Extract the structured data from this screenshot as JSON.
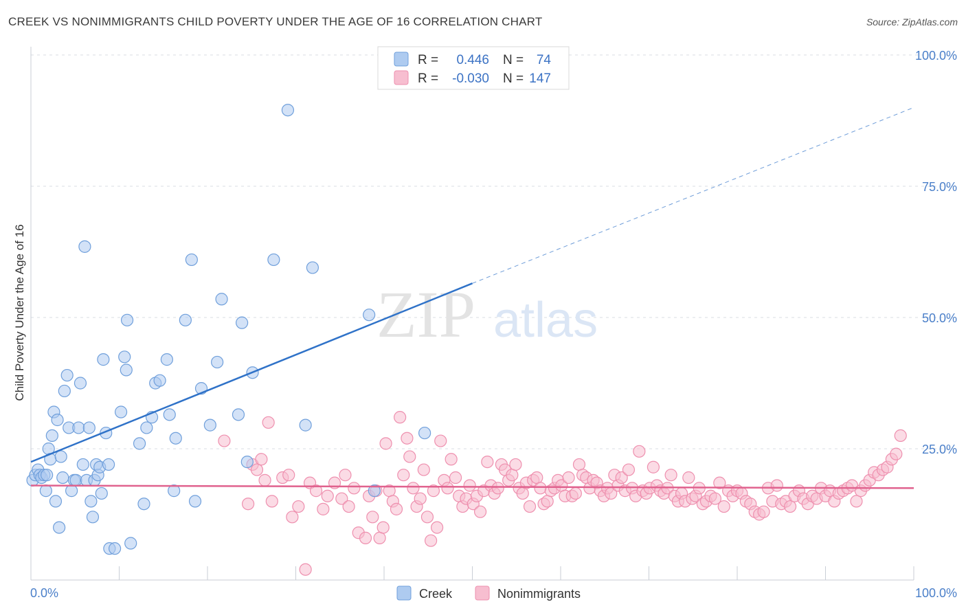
{
  "title": "CREEK VS NONIMMIGRANTS CHILD POVERTY UNDER THE AGE OF 16 CORRELATION CHART",
  "source": "Source: ZipAtlas.com",
  "watermark": {
    "zip": "ZIP",
    "atlas": "atlas"
  },
  "colors": {
    "creek_fill": "#aecbf0",
    "creek_stroke": "#6f9fdb",
    "creek_line": "#2f72c8",
    "nonimm_fill": "#f7bed0",
    "nonimm_stroke": "#ee8fae",
    "nonimm_line": "#e0628e",
    "grid": "#d9dde3",
    "tick_text": "#4a7fc9"
  },
  "legend": {
    "creek": {
      "r_label": "R =",
      "r_value": "0.446",
      "n_label": "N =",
      "n_value": "74"
    },
    "nonimm": {
      "r_label": "R =",
      "r_value": "-0.030",
      "n_label": "N =",
      "n_value": "147"
    }
  },
  "chart_data": {
    "type": "scatter",
    "xlabel": "",
    "ylabel": "Child Poverty Under the Age of 16",
    "xlim": [
      0,
      100
    ],
    "ylim": [
      0,
      100
    ],
    "x_tick_labels": {
      "min": "0.0%",
      "max": "100.0%"
    },
    "y_ticks": [
      {
        "value": 25,
        "label": "25.0%"
      },
      {
        "value": 50,
        "label": "50.0%"
      },
      {
        "value": 75,
        "label": "75.0%"
      },
      {
        "value": 100,
        "label": "100.0%"
      }
    ],
    "grid": true,
    "legend_position": "top-center",
    "series": [
      {
        "name": "Creek",
        "trend": {
          "x0": 0,
          "y0": 22.5,
          "x1": 50,
          "y1": 56.5,
          "dash_to_x": 100,
          "dash_to_y": 90
        },
        "points": [
          [
            0.2,
            19
          ],
          [
            0.5,
            20
          ],
          [
            0.8,
            21
          ],
          [
            1.0,
            20
          ],
          [
            1.2,
            19.5
          ],
          [
            1.5,
            20
          ],
          [
            1.7,
            17
          ],
          [
            1.8,
            20
          ],
          [
            2.0,
            25
          ],
          [
            2.2,
            23
          ],
          [
            2.4,
            27.5
          ],
          [
            2.6,
            32
          ],
          [
            2.8,
            15
          ],
          [
            3.0,
            30.5
          ],
          [
            3.2,
            10
          ],
          [
            3.4,
            23.5
          ],
          [
            3.6,
            19.5
          ],
          [
            3.8,
            36
          ],
          [
            4.1,
            39
          ],
          [
            4.3,
            29
          ],
          [
            4.6,
            17
          ],
          [
            4.9,
            19
          ],
          [
            5.1,
            19
          ],
          [
            5.4,
            29
          ],
          [
            5.6,
            37.5
          ],
          [
            5.9,
            22
          ],
          [
            6.1,
            63.5
          ],
          [
            6.3,
            19
          ],
          [
            6.6,
            29
          ],
          [
            6.8,
            15
          ],
          [
            7.0,
            12
          ],
          [
            7.2,
            19
          ],
          [
            7.4,
            22
          ],
          [
            7.6,
            20
          ],
          [
            7.8,
            21.5
          ],
          [
            8.0,
            16.5
          ],
          [
            8.2,
            42
          ],
          [
            8.5,
            28
          ],
          [
            8.8,
            22
          ],
          [
            8.9,
            6
          ],
          [
            9.5,
            6
          ],
          [
            10.2,
            32
          ],
          [
            10.6,
            42.5
          ],
          [
            10.8,
            40
          ],
          [
            10.9,
            49.5
          ],
          [
            11.3,
            7
          ],
          [
            12.3,
            26
          ],
          [
            12.8,
            14.5
          ],
          [
            13.1,
            29
          ],
          [
            13.7,
            31
          ],
          [
            14.1,
            37.5
          ],
          [
            14.6,
            38
          ],
          [
            15.4,
            42
          ],
          [
            15.7,
            31.5
          ],
          [
            16.2,
            17
          ],
          [
            16.4,
            27
          ],
          [
            17.5,
            49.5
          ],
          [
            18.2,
            61
          ],
          [
            18.6,
            15
          ],
          [
            19.3,
            36.5
          ],
          [
            20.3,
            29.5
          ],
          [
            21.1,
            41.5
          ],
          [
            21.6,
            53.5
          ],
          [
            23.5,
            31.5
          ],
          [
            23.9,
            49
          ],
          [
            24.5,
            22.5
          ],
          [
            25.1,
            39.5
          ],
          [
            27.5,
            61
          ],
          [
            29.1,
            89.5
          ],
          [
            31.1,
            29.5
          ],
          [
            31.9,
            59.5
          ],
          [
            38.3,
            50.5
          ],
          [
            38.9,
            17
          ],
          [
            44.6,
            28
          ]
        ]
      },
      {
        "name": "Nonimmigrants",
        "trend": {
          "x0": 0,
          "y0": 18,
          "x1": 100,
          "y1": 17.5
        },
        "points": [
          [
            21.9,
            26.5
          ],
          [
            24.6,
            14.5
          ],
          [
            25.1,
            22
          ],
          [
            25.6,
            21
          ],
          [
            26.1,
            23
          ],
          [
            26.5,
            19
          ],
          [
            26.9,
            30
          ],
          [
            27.3,
            15
          ],
          [
            28.5,
            19.5
          ],
          [
            29.2,
            20
          ],
          [
            29.6,
            12
          ],
          [
            30.3,
            14
          ],
          [
            31.1,
            2
          ],
          [
            31.6,
            18.5
          ],
          [
            32.3,
            17
          ],
          [
            33.1,
            13.5
          ],
          [
            33.6,
            16
          ],
          [
            34.4,
            18.5
          ],
          [
            35.2,
            15.5
          ],
          [
            35.6,
            20
          ],
          [
            36.0,
            14
          ],
          [
            36.6,
            17.5
          ],
          [
            37.1,
            9
          ],
          [
            37.9,
            8
          ],
          [
            38.3,
            16
          ],
          [
            38.7,
            12
          ],
          [
            39.1,
            17
          ],
          [
            39.5,
            8
          ],
          [
            39.9,
            10
          ],
          [
            40.2,
            26
          ],
          [
            40.6,
            17
          ],
          [
            41.0,
            15
          ],
          [
            41.4,
            13.5
          ],
          [
            41.8,
            31
          ],
          [
            42.2,
            20
          ],
          [
            42.6,
            27
          ],
          [
            42.9,
            23.5
          ],
          [
            43.3,
            17.5
          ],
          [
            43.7,
            14
          ],
          [
            44.1,
            15.5
          ],
          [
            44.5,
            21
          ],
          [
            44.9,
            12
          ],
          [
            45.3,
            7.5
          ],
          [
            45.6,
            17
          ],
          [
            46.0,
            10
          ],
          [
            46.4,
            26.5
          ],
          [
            46.8,
            19
          ],
          [
            47.2,
            17.5
          ],
          [
            47.6,
            23
          ],
          [
            48.1,
            19.5
          ],
          [
            48.5,
            16
          ],
          [
            48.9,
            14
          ],
          [
            49.3,
            15.5
          ],
          [
            49.7,
            18
          ],
          [
            50.1,
            14.5
          ],
          [
            50.5,
            16
          ],
          [
            50.9,
            13
          ],
          [
            51.3,
            17
          ],
          [
            51.7,
            22.5
          ],
          [
            52.1,
            18
          ],
          [
            52.5,
            16.5
          ],
          [
            52.9,
            17.5
          ],
          [
            53.3,
            22
          ],
          [
            53.7,
            21
          ],
          [
            54.1,
            19
          ],
          [
            54.5,
            20
          ],
          [
            54.9,
            22
          ],
          [
            55.3,
            17.5
          ],
          [
            55.7,
            16.5
          ],
          [
            56.1,
            18.5
          ],
          [
            56.5,
            14
          ],
          [
            56.9,
            19
          ],
          [
            57.3,
            19.5
          ],
          [
            57.7,
            17.5
          ],
          [
            58.1,
            14.5
          ],
          [
            58.5,
            15
          ],
          [
            58.9,
            17
          ],
          [
            59.3,
            17.5
          ],
          [
            59.7,
            19
          ],
          [
            60.1,
            18
          ],
          [
            60.5,
            16
          ],
          [
            60.9,
            19.5
          ],
          [
            61.3,
            16
          ],
          [
            61.7,
            16.5
          ],
          [
            62.1,
            22
          ],
          [
            62.5,
            20
          ],
          [
            62.9,
            19.5
          ],
          [
            63.3,
            17.5
          ],
          [
            63.7,
            19
          ],
          [
            64.1,
            18.5
          ],
          [
            64.5,
            17
          ],
          [
            64.9,
            16
          ],
          [
            65.3,
            17.5
          ],
          [
            65.7,
            16.5
          ],
          [
            66.1,
            20
          ],
          [
            66.5,
            18
          ],
          [
            66.9,
            19.5
          ],
          [
            67.3,
            17
          ],
          [
            67.7,
            21
          ],
          [
            68.1,
            17.5
          ],
          [
            68.5,
            16
          ],
          [
            68.9,
            24.5
          ],
          [
            69.3,
            17
          ],
          [
            69.7,
            16.5
          ],
          [
            70.1,
            17.5
          ],
          [
            70.5,
            21.5
          ],
          [
            70.9,
            18
          ],
          [
            71.3,
            17
          ],
          [
            71.7,
            16.5
          ],
          [
            72.1,
            17.5
          ],
          [
            72.5,
            20
          ],
          [
            72.9,
            16
          ],
          [
            73.3,
            15
          ],
          [
            73.7,
            16.5
          ],
          [
            74.1,
            15
          ],
          [
            74.5,
            19.5
          ],
          [
            74.9,
            15.5
          ],
          [
            75.3,
            16
          ],
          [
            75.7,
            17.5
          ],
          [
            76.1,
            14.5
          ],
          [
            76.5,
            15
          ],
          [
            77.0,
            16
          ],
          [
            77.5,
            15.5
          ],
          [
            78.0,
            18.5
          ],
          [
            78.5,
            14
          ],
          [
            79.0,
            17
          ],
          [
            79.5,
            16
          ],
          [
            80.0,
            17
          ],
          [
            80.5,
            16.5
          ],
          [
            81.0,
            15
          ],
          [
            81.5,
            14.5
          ],
          [
            82.0,
            13
          ],
          [
            82.5,
            12.5
          ],
          [
            83.0,
            13
          ],
          [
            83.5,
            17.5
          ],
          [
            84.0,
            15
          ],
          [
            84.5,
            18
          ],
          [
            85.0,
            14.5
          ],
          [
            85.5,
            15
          ],
          [
            86.0,
            14
          ],
          [
            86.5,
            16
          ],
          [
            87.0,
            17
          ],
          [
            87.5,
            15.5
          ],
          [
            88.0,
            14.5
          ],
          [
            88.5,
            16
          ],
          [
            89.0,
            15.5
          ],
          [
            89.5,
            17.5
          ],
          [
            90.0,
            16
          ],
          [
            90.5,
            17
          ],
          [
            91.0,
            15
          ],
          [
            91.5,
            16.5
          ],
          [
            92.0,
            17
          ],
          [
            92.5,
            17.5
          ],
          [
            93.0,
            18
          ],
          [
            93.5,
            15
          ],
          [
            94.0,
            17
          ],
          [
            94.5,
            18
          ],
          [
            95.0,
            19
          ],
          [
            95.5,
            20.5
          ],
          [
            96.0,
            20
          ],
          [
            96.5,
            21
          ],
          [
            97.0,
            21.5
          ],
          [
            97.5,
            23
          ],
          [
            98.0,
            24
          ],
          [
            98.5,
            27.5
          ]
        ]
      }
    ]
  },
  "bottom_legend": {
    "creek": "Creek",
    "nonimm": "Nonimmigrants"
  }
}
